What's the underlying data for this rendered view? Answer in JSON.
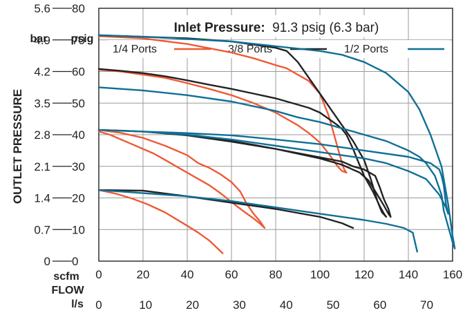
{
  "chart_data": {
    "type": "line",
    "title_strong": "Inlet Pressure:",
    "title_rest": "91.3 psig (6.3 bar)",
    "xlabel": "FLOW",
    "ylabel": "OUTLET PRESSURE",
    "x_primary_unit": "scfm",
    "x_secondary_unit": "l/s",
    "y_primary_unit": "psig",
    "y_secondary_unit": "bar",
    "xlim": [
      0,
      160
    ],
    "ylim": [
      0,
      80
    ],
    "x_ticks": [
      "0",
      "20",
      "40",
      "60",
      "80",
      "100",
      "120",
      "140",
      "160"
    ],
    "x_ticks_ls": [
      "0",
      "10",
      "20",
      "30",
      "40",
      "50",
      "60",
      "70"
    ],
    "x_ticks_ls_values": [
      0,
      10,
      20,
      30,
      40,
      50,
      60,
      70
    ],
    "y_ticks_psig": [
      "0",
      "10",
      "20",
      "30",
      "40",
      "50",
      "60",
      "70",
      "80"
    ],
    "y_ticks_bar": [
      "0",
      "0.7",
      "1.4",
      "2.1",
      "2.8",
      "3.5",
      "4.2",
      "4.9",
      "5.6"
    ],
    "grid": true,
    "series": [
      {
        "name": "1/4 Ports",
        "color": "#ee5a36",
        "curves": [
          [
            [
              0,
              71.2
            ],
            [
              20,
              70.5
            ],
            [
              40,
              68.7
            ],
            [
              60,
              66.0
            ],
            [
              70,
              64.2
            ],
            [
              80,
              62.0
            ],
            [
              85,
              61.0
            ],
            [
              90,
              59.0
            ],
            [
              95,
              57.0
            ],
            [
              100,
              53.0
            ],
            [
              104,
              46.0
            ],
            [
              108,
              36.0
            ],
            [
              110,
              31.0
            ],
            [
              111,
              29.0
            ],
            [
              112,
              28.0
            ],
            [
              110,
              28.5
            ],
            [
              108,
              30.0
            ],
            [
              104,
              34.0
            ],
            [
              100,
              37.5
            ],
            [
              95,
              40.5
            ],
            [
              90,
              43.0
            ],
            [
              80,
              47.0
            ],
            [
              70,
              50.0
            ],
            [
              60,
              52.5
            ],
            [
              50,
              54.5
            ],
            [
              40,
              56.3
            ],
            [
              30,
              58.0
            ],
            [
              20,
              59.0
            ],
            [
              10,
              60.0
            ],
            [
              0,
              60.6
            ]
          ],
          [
            [
              0,
              41.5
            ],
            [
              10,
              40.6
            ],
            [
              20,
              39.0
            ],
            [
              30,
              36.5
            ],
            [
              40,
              33.5
            ],
            [
              45,
              31.0
            ],
            [
              50,
              29.5
            ],
            [
              55,
              27.5
            ],
            [
              60,
              25.0
            ],
            [
              64,
              22.0
            ],
            [
              67,
              18.0
            ],
            [
              70,
              15.0
            ],
            [
              73,
              12.5
            ],
            [
              75,
              10.5
            ],
            [
              73,
              11.8
            ],
            [
              70,
              13.5
            ],
            [
              67,
              15.0
            ],
            [
              62,
              17.6
            ],
            [
              55,
              21.5
            ],
            [
              50,
              24.0
            ],
            [
              45,
              26.0
            ],
            [
              40,
              28.0
            ],
            [
              35,
              30.0
            ],
            [
              30,
              32.0
            ],
            [
              25,
              34.0
            ],
            [
              20,
              35.5
            ],
            [
              15,
              37.0
            ],
            [
              10,
              38.5
            ],
            [
              5,
              40.0
            ],
            [
              0,
              41.0
            ]
          ],
          [
            [
              0,
              22.5
            ],
            [
              8,
              21.3
            ],
            [
              15,
              19.8
            ],
            [
              22,
              18.0
            ],
            [
              30,
              15.4
            ],
            [
              35,
              13.3
            ],
            [
              40,
              11.2
            ],
            [
              45,
              9.0
            ],
            [
              50,
              6.5
            ],
            [
              53,
              4.5
            ],
            [
              56,
              2.5
            ]
          ]
        ]
      },
      {
        "name": "3/8 Ports",
        "color": "#222222",
        "curves": [
          [
            [
              0,
              71.5
            ],
            [
              20,
              71.0
            ],
            [
              40,
              70.5
            ],
            [
              60,
              69.5
            ],
            [
              70,
              68.5
            ],
            [
              80,
              67.5
            ],
            [
              85,
              66.5
            ],
            [
              90,
              63.0
            ],
            [
              95,
              58.0
            ],
            [
              100,
              53.0
            ],
            [
              105,
              48.0
            ],
            [
              110,
              43.0
            ],
            [
              115,
              38.0
            ],
            [
              120,
              32.0
            ],
            [
              123,
              26.0
            ],
            [
              126,
              19.0
            ],
            [
              128,
              15.5
            ],
            [
              130,
              14.0
            ],
            [
              129,
              15.0
            ],
            [
              127,
              17.5
            ],
            [
              124,
              22.0
            ],
            [
              120,
              27.0
            ],
            [
              117,
              32.0
            ],
            [
              115,
              35.5
            ],
            [
              112,
              40.0
            ],
            [
              110,
              41.8
            ],
            [
              108,
              43.0
            ],
            [
              105,
              44.5
            ],
            [
              100,
              47.0
            ],
            [
              95,
              48.5
            ],
            [
              90,
              49.5
            ],
            [
              80,
              51.5
            ],
            [
              70,
              53.0
            ],
            [
              60,
              54.5
            ],
            [
              50,
              55.8
            ],
            [
              40,
              57.2
            ],
            [
              30,
              58.5
            ],
            [
              20,
              59.5
            ],
            [
              10,
              60.2
            ],
            [
              0,
              60.8
            ]
          ],
          [
            [
              0,
              41.5
            ],
            [
              20,
              41.0
            ],
            [
              40,
              39.8
            ],
            [
              60,
              37.8
            ],
            [
              80,
              35.5
            ],
            [
              95,
              33.5
            ],
            [
              110,
              31.5
            ],
            [
              115,
              30.0
            ],
            [
              120,
              29.0
            ],
            [
              125,
              27.0
            ],
            [
              127,
              23.5
            ],
            [
              129,
              19.5
            ],
            [
              131,
              16.5
            ],
            [
              132,
              14.0
            ],
            [
              131,
              15.0
            ],
            [
              129,
              17.5
            ],
            [
              126,
              21.0
            ],
            [
              122,
              25.5
            ],
            [
              118,
              28.0
            ],
            [
              110,
              30.5
            ],
            [
              100,
              32.5
            ],
            [
              90,
              34.0
            ],
            [
              80,
              35.5
            ],
            [
              70,
              36.8
            ],
            [
              60,
              38.0
            ],
            [
              50,
              38.8
            ],
            [
              40,
              39.8
            ],
            [
              30,
              40.5
            ],
            [
              20,
              41.0
            ],
            [
              10,
              41.3
            ],
            [
              0,
              41.5
            ]
          ],
          [
            [
              0,
              22.5
            ],
            [
              20,
              22.3
            ],
            [
              40,
              20.5
            ],
            [
              60,
              18.5
            ],
            [
              80,
              16.5
            ],
            [
              100,
              14.0
            ],
            [
              110,
              12.0
            ],
            [
              115,
              10.5
            ]
          ]
        ]
      },
      {
        "name": "1/2 Ports",
        "color": "#0f6f96",
        "curves": [
          [
            [
              0,
              71.5
            ],
            [
              20,
              71.0
            ],
            [
              40,
              70.3
            ],
            [
              60,
              69.5
            ],
            [
              80,
              68.0
            ],
            [
              100,
              66.5
            ],
            [
              110,
              65.3
            ],
            [
              120,
              63.0
            ],
            [
              130,
              59.5
            ],
            [
              140,
              53.5
            ],
            [
              145,
              48.0
            ],
            [
              150,
              40.0
            ],
            [
              155,
              30.0
            ],
            [
              158,
              18.0
            ],
            [
              160,
              8.0
            ],
            [
              161,
              4.0
            ],
            [
              160,
              6.0
            ],
            [
              158,
              11.0
            ],
            [
              156,
              16.0
            ],
            [
              155,
              21.0
            ],
            [
              152,
              27.0
            ],
            [
              148,
              31.0
            ],
            [
              145,
              33.0
            ],
            [
              140,
              35.0
            ],
            [
              130,
              38.0
            ],
            [
              120,
              40.0
            ],
            [
              110,
              42.0
            ],
            [
              100,
              44.0
            ],
            [
              90,
              45.5
            ],
            [
              80,
              47.5
            ],
            [
              70,
              49.0
            ],
            [
              60,
              50.5
            ],
            [
              40,
              52.5
            ],
            [
              20,
              54.0
            ],
            [
              0,
              55.0
            ]
          ],
          [
            [
              0,
              41.5
            ],
            [
              20,
              41.0
            ],
            [
              40,
              40.5
            ],
            [
              60,
              39.8
            ],
            [
              80,
              38.5
            ],
            [
              100,
              37.0
            ],
            [
              120,
              35.0
            ],
            [
              140,
              33.0
            ],
            [
              150,
              31.0
            ],
            [
              154,
              29.0
            ],
            [
              155,
              27.0
            ],
            [
              156,
              24.0
            ],
            [
              157,
              18.0
            ],
            [
              158,
              15.0
            ],
            [
              157,
              17.0
            ],
            [
              154,
              21.0
            ],
            [
              148,
              26.0
            ],
            [
              140,
              28.5
            ],
            [
              130,
              31.0
            ],
            [
              120,
              32.5
            ],
            [
              110,
              33.5
            ],
            [
              100,
              34.5
            ],
            [
              80,
              36.5
            ],
            [
              60,
              38.5
            ],
            [
              40,
              40.0
            ],
            [
              20,
              41.0
            ],
            [
              0,
              41.5
            ]
          ],
          [
            [
              0,
              22.5
            ],
            [
              20,
              21.5
            ],
            [
              40,
              20.5
            ],
            [
              60,
              19.0
            ],
            [
              80,
              17.0
            ],
            [
              100,
              15.0
            ],
            [
              110,
              14.0
            ],
            [
              120,
              13.0
            ],
            [
              130,
              11.8
            ],
            [
              138,
              10.5
            ],
            [
              142,
              9.0
            ],
            [
              143,
              6.0
            ],
            [
              144,
              3.0
            ]
          ]
        ]
      }
    ]
  }
}
